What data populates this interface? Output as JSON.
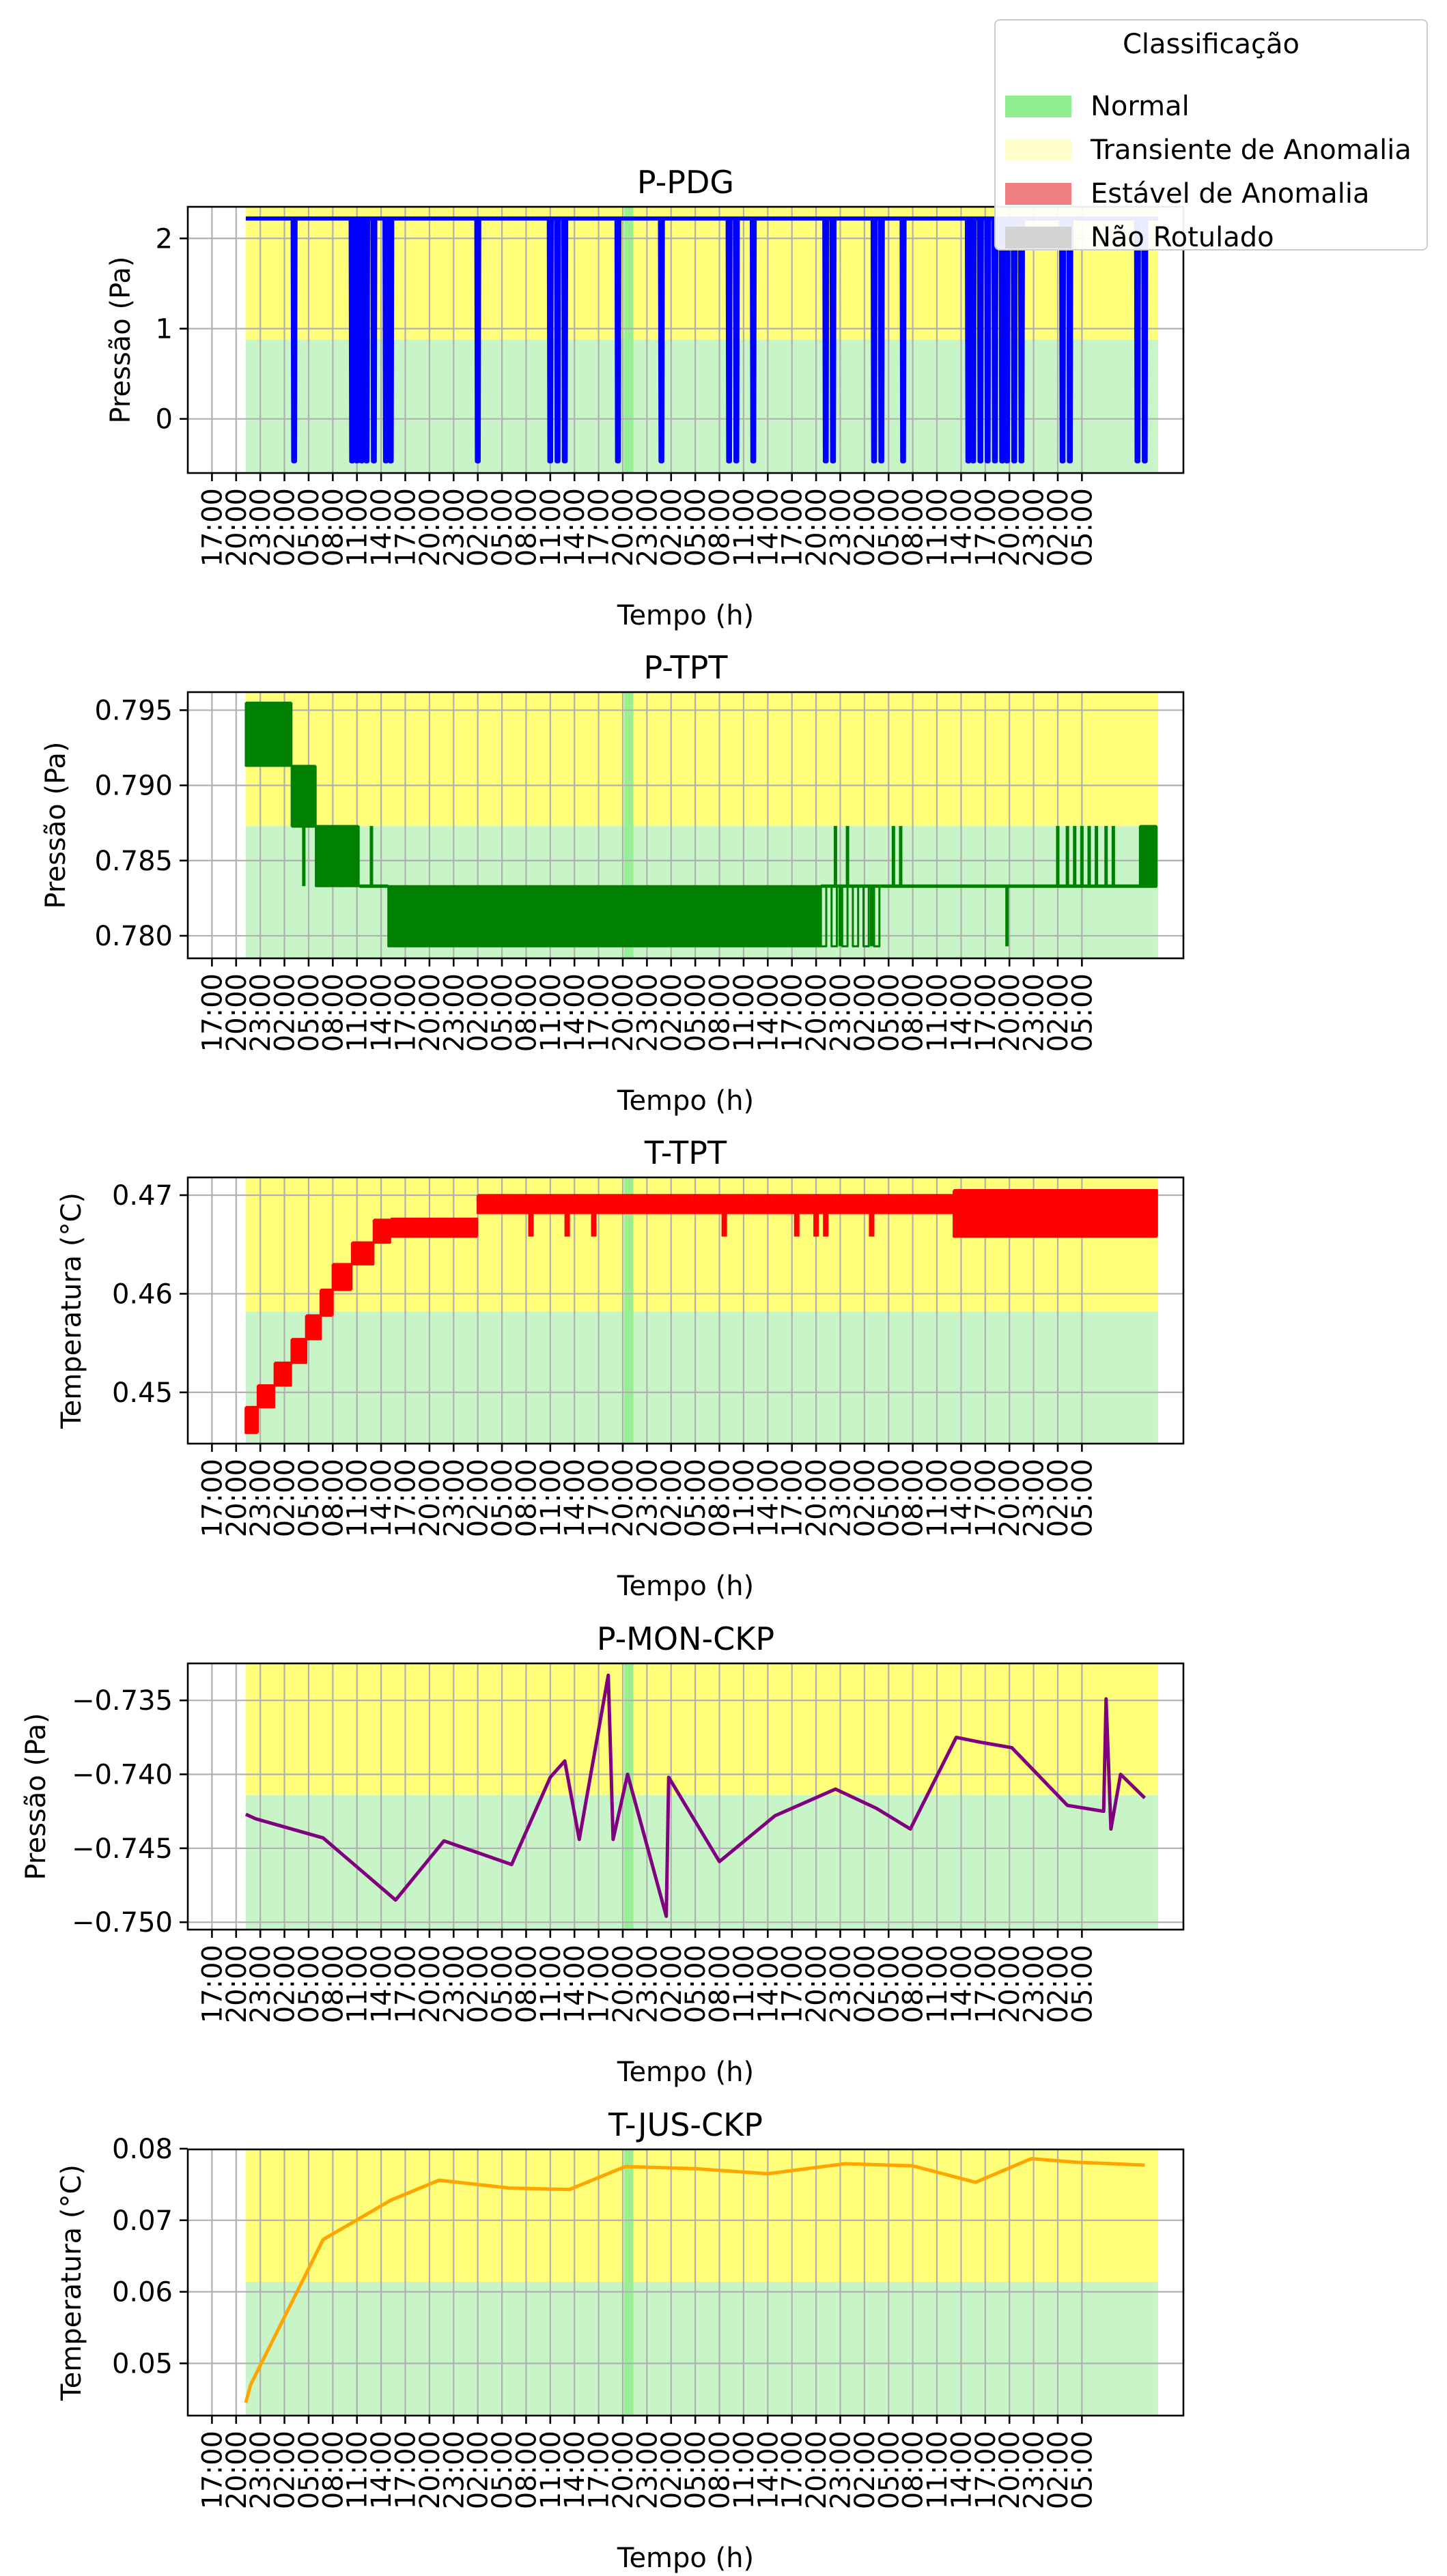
{
  "legend": {
    "title": "Classificação",
    "items": [
      {
        "label": "Normal",
        "color": "#90ee90"
      },
      {
        "label": "Transiente de Anomalia",
        "color": "#ffffcc"
      },
      {
        "label": "Estável de Anomalia",
        "color": "#f08080"
      },
      {
        "label": "Não Rotulado",
        "color": "#d3d3d3"
      }
    ]
  },
  "colors": {
    "normal_band": "#c8f5c8",
    "transient_band": "#ffff7a",
    "normal_span": "#90ee90",
    "grid": "#b0b0b0"
  },
  "chart_data": [
    {
      "type": "line",
      "title": "P-PDG",
      "xlabel": "Tempo (h)",
      "ylabel": "Pressão (Pa)",
      "color": "#0000ff",
      "ylim": [
        -0.6,
        2.35
      ],
      "yticks": [
        {
          "v": 0,
          "label": "0"
        },
        {
          "v": 1,
          "label": "1"
        },
        {
          "v": 2,
          "label": "2"
        }
      ],
      "xtick_labels": [
        "17:00",
        "20:00",
        "23:00",
        "02:00",
        "05:00",
        "08:00",
        "11:00",
        "14:00",
        "17:00",
        "20:00",
        "23:00",
        "02:00",
        "05:00",
        "08:00",
        "11:00",
        "14:00",
        "17:00",
        "20:00",
        "23:00",
        "02:00",
        "05:00",
        "08:00",
        "11:00",
        "14:00",
        "17:00",
        "20:00",
        "23:00",
        "02:00",
        "05:00",
        "08:00",
        "11:00",
        "14:00",
        "17:00",
        "20:00",
        "23:00",
        "02:00",
        "05:00"
      ],
      "transition_level": 0.88,
      "base": 2.22,
      "dip_value": -0.47,
      "dips": [
        3.4,
        5.8,
        6.0,
        6.2,
        6.4,
        6.7,
        7.2,
        7.4,
        11.0,
        14.0,
        14.3,
        14.6,
        16.8,
        18.6,
        21.4,
        21.7,
        22.4,
        25.4,
        25.7,
        27.4,
        27.7,
        28.6,
        31.3,
        31.5,
        31.8,
        32.1,
        32.4,
        32.7,
        32.9,
        33.2,
        33.5,
        35.2,
        35.5,
        38.3,
        38.6
      ]
    },
    {
      "type": "line",
      "title": "P-TPT",
      "xlabel": "Tempo (h)",
      "ylabel": "Pressão (Pa)",
      "color": "#008000",
      "ylim": [
        0.7785,
        0.7962
      ],
      "yticks": [
        {
          "v": 0.78,
          "label": "0.780"
        },
        {
          "v": 0.785,
          "label": "0.785"
        },
        {
          "v": 0.79,
          "label": "0.790"
        },
        {
          "v": 0.795,
          "label": "0.795"
        }
      ],
      "xtick_labels": [
        "17:00",
        "20:00",
        "23:00",
        "02:00",
        "05:00",
        "08:00",
        "11:00",
        "14:00",
        "17:00",
        "20:00",
        "23:00",
        "02:00",
        "05:00",
        "08:00",
        "11:00",
        "14:00",
        "17:00",
        "20:00",
        "23:00",
        "02:00",
        "05:00",
        "08:00",
        "11:00",
        "14:00",
        "17:00",
        "20:00",
        "23:00",
        "02:00",
        "05:00",
        "08:00",
        "11:00",
        "14:00",
        "17:00",
        "20:00",
        "23:00",
        "02:00",
        "05:00"
      ],
      "transition_level": 0.7873,
      "segments": [
        {
          "x0": 1.4,
          "x1": 3.3,
          "lo": 0.7913,
          "hi": 0.7955
        },
        {
          "x0": 3.3,
          "x1": 4.3,
          "lo": 0.7873,
          "hi": 0.7913
        },
        {
          "x0": 4.3,
          "x1": 6.1,
          "lo": 0.7833,
          "hi": 0.7873
        },
        {
          "x0": 7.3,
          "x1": 25.2,
          "lo": 0.7793,
          "hi": 0.7833
        },
        {
          "x0": 25.2,
          "x1": 27.8,
          "lo": 0.7793,
          "hi": 0.7833,
          "sparse": true
        },
        {
          "x0": 38.4,
          "x1": 39.1,
          "lo": 0.7833,
          "hi": 0.7873
        }
      ],
      "baseline_runs": [
        {
          "x0": 3.3,
          "x1": 4.3,
          "v": 0.7873
        },
        {
          "x0": 6.1,
          "x1": 7.3,
          "v": 0.7833
        },
        {
          "x0": 25.2,
          "x1": 39.1,
          "v": 0.7833
        }
      ],
      "spikes_up": [
        3.8,
        6.6,
        25.8,
        26.3,
        28.2,
        28.5,
        35.0,
        35.4,
        35.7,
        36.0,
        36.3,
        36.6,
        37.0,
        37.3
      ],
      "spikes_down": [
        26.0,
        27.3,
        32.9
      ]
    },
    {
      "type": "line",
      "title": "T-TPT",
      "xlabel": "Tempo (h)",
      "ylabel": "Temperatura (°C)",
      "color": "#ff0000",
      "ylim": [
        0.4448,
        0.4718
      ],
      "yticks": [
        {
          "v": 0.45,
          "label": "0.45"
        },
        {
          "v": 0.46,
          "label": "0.46"
        },
        {
          "v": 0.47,
          "label": "0.47"
        }
      ],
      "xtick_labels": [
        "17:00",
        "20:00",
        "23:00",
        "02:00",
        "05:00",
        "08:00",
        "11:00",
        "14:00",
        "17:00",
        "20:00",
        "23:00",
        "02:00",
        "05:00",
        "08:00",
        "11:00",
        "14:00",
        "17:00",
        "20:00",
        "23:00",
        "02:00",
        "05:00",
        "08:00",
        "11:00",
        "14:00",
        "17:00",
        "20:00",
        "23:00",
        "02:00",
        "05:00",
        "08:00",
        "11:00",
        "14:00",
        "17:00",
        "20:00",
        "23:00",
        "02:00",
        "05:00"
      ],
      "transition_level": 0.4582,
      "steps": [
        {
          "x0": 1.4,
          "x1": 1.9,
          "lo": 0.4459,
          "hi": 0.4485
        },
        {
          "x0": 1.9,
          "x1": 2.6,
          "lo": 0.4485,
          "hi": 0.4507
        },
        {
          "x0": 2.6,
          "x1": 3.3,
          "lo": 0.4507,
          "hi": 0.453
        },
        {
          "x0": 3.3,
          "x1": 3.9,
          "lo": 0.453,
          "hi": 0.4554
        },
        {
          "x0": 3.9,
          "x1": 4.5,
          "lo": 0.4554,
          "hi": 0.4578
        },
        {
          "x0": 4.5,
          "x1": 5.0,
          "lo": 0.4578,
          "hi": 0.4604
        },
        {
          "x0": 5.0,
          "x1": 5.8,
          "lo": 0.4604,
          "hi": 0.463
        },
        {
          "x0": 5.8,
          "x1": 6.7,
          "lo": 0.463,
          "hi": 0.4652
        },
        {
          "x0": 6.7,
          "x1": 7.4,
          "lo": 0.4652,
          "hi": 0.4675
        },
        {
          "x0": 7.4,
          "x1": 11.0,
          "lo": 0.4658,
          "hi": 0.4676
        },
        {
          "x0": 11.0,
          "x1": 30.7,
          "lo": 0.4682,
          "hi": 0.47
        },
        {
          "x0": 30.7,
          "x1": 39.1,
          "lo": 0.4658,
          "hi": 0.4705
        }
      ],
      "dips": [
        13.2,
        14.7,
        15.8,
        21.2,
        24.2,
        25.0,
        25.4,
        27.3
      ]
    },
    {
      "type": "line",
      "title": "P-MON-CKP",
      "xlabel": "Tempo (h)",
      "ylabel": "Pressão (Pa)",
      "color": "#800080",
      "ylim": [
        -0.7505,
        -0.7325
      ],
      "yticks": [
        {
          "v": -0.75,
          "label": "−0.750"
        },
        {
          "v": -0.745,
          "label": "−0.745"
        },
        {
          "v": -0.74,
          "label": "−0.740"
        },
        {
          "v": -0.735,
          "label": "−0.735"
        }
      ],
      "xtick_labels": [
        "17:00",
        "20:00",
        "23:00",
        "02:00",
        "05:00",
        "08:00",
        "11:00",
        "14:00",
        "17:00",
        "20:00",
        "23:00",
        "02:00",
        "05:00",
        "08:00",
        "11:00",
        "14:00",
        "17:00",
        "20:00",
        "23:00",
        "02:00",
        "05:00",
        "08:00",
        "11:00",
        "14:00",
        "17:00",
        "20:00",
        "23:00",
        "02:00",
        "05:00",
        "08:00",
        "11:00",
        "14:00",
        "17:00",
        "20:00",
        "23:00",
        "02:00",
        "05:00"
      ],
      "transition_level": -0.7414,
      "x": [
        1.4,
        1.8,
        4.6,
        7.6,
        9.6,
        12.4,
        14.0,
        14.6,
        15.2,
        16.4,
        16.6,
        17.2,
        18.8,
        18.9,
        21.0,
        23.3,
        25.8,
        27.5,
        28.9,
        30.8,
        31.7,
        33.1,
        35.4,
        36.9,
        37.0,
        37.2,
        37.6,
        38.6
      ],
      "y": [
        -0.7427,
        -0.743,
        -0.7443,
        -0.7485,
        -0.7445,
        -0.7461,
        -0.7402,
        -0.7391,
        -0.7444,
        -0.7333,
        -0.7444,
        -0.74,
        -0.7496,
        -0.7402,
        -0.7459,
        -0.7428,
        -0.741,
        -0.7423,
        -0.7437,
        -0.7375,
        -0.7378,
        -0.7382,
        -0.7421,
        -0.7425,
        -0.7349,
        -0.7437,
        -0.74,
        -0.7416
      ]
    },
    {
      "type": "line",
      "title": "T-JUS-CKP",
      "xlabel": "Tempo (h)",
      "ylabel": "Temperatura (°C)",
      "color": "#ffa500",
      "ylim": [
        0.0427,
        0.0799
      ],
      "yticks": [
        {
          "v": 0.05,
          "label": "0.05"
        },
        {
          "v": 0.06,
          "label": "0.06"
        },
        {
          "v": 0.07,
          "label": "0.07"
        },
        {
          "v": 0.08,
          "label": "0.08"
        }
      ],
      "xtick_labels": [
        "17:00",
        "20:00",
        "23:00",
        "02:00",
        "05:00",
        "08:00",
        "11:00",
        "14:00",
        "17:00",
        "20:00",
        "23:00",
        "02:00",
        "05:00",
        "08:00",
        "11:00",
        "14:00",
        "17:00",
        "20:00",
        "23:00",
        "02:00",
        "05:00",
        "08:00",
        "11:00",
        "14:00",
        "17:00",
        "20:00",
        "23:00",
        "02:00",
        "05:00",
        "08:00",
        "11:00",
        "14:00",
        "17:00",
        "20:00",
        "23:00",
        "02:00",
        "05:00"
      ],
      "transition_level": 0.0614,
      "x": [
        1.4,
        1.6,
        4.6,
        7.4,
        9.4,
        12.3,
        14.8,
        17.1,
        20.0,
        23.0,
        26.2,
        29.0,
        31.6,
        33.9,
        35.8,
        38.6
      ],
      "y": [
        0.0445,
        0.047,
        0.0673,
        0.0728,
        0.0756,
        0.0745,
        0.0743,
        0.0775,
        0.0772,
        0.0765,
        0.0779,
        0.0776,
        0.0753,
        0.0786,
        0.0781,
        0.0777
      ]
    }
  ]
}
